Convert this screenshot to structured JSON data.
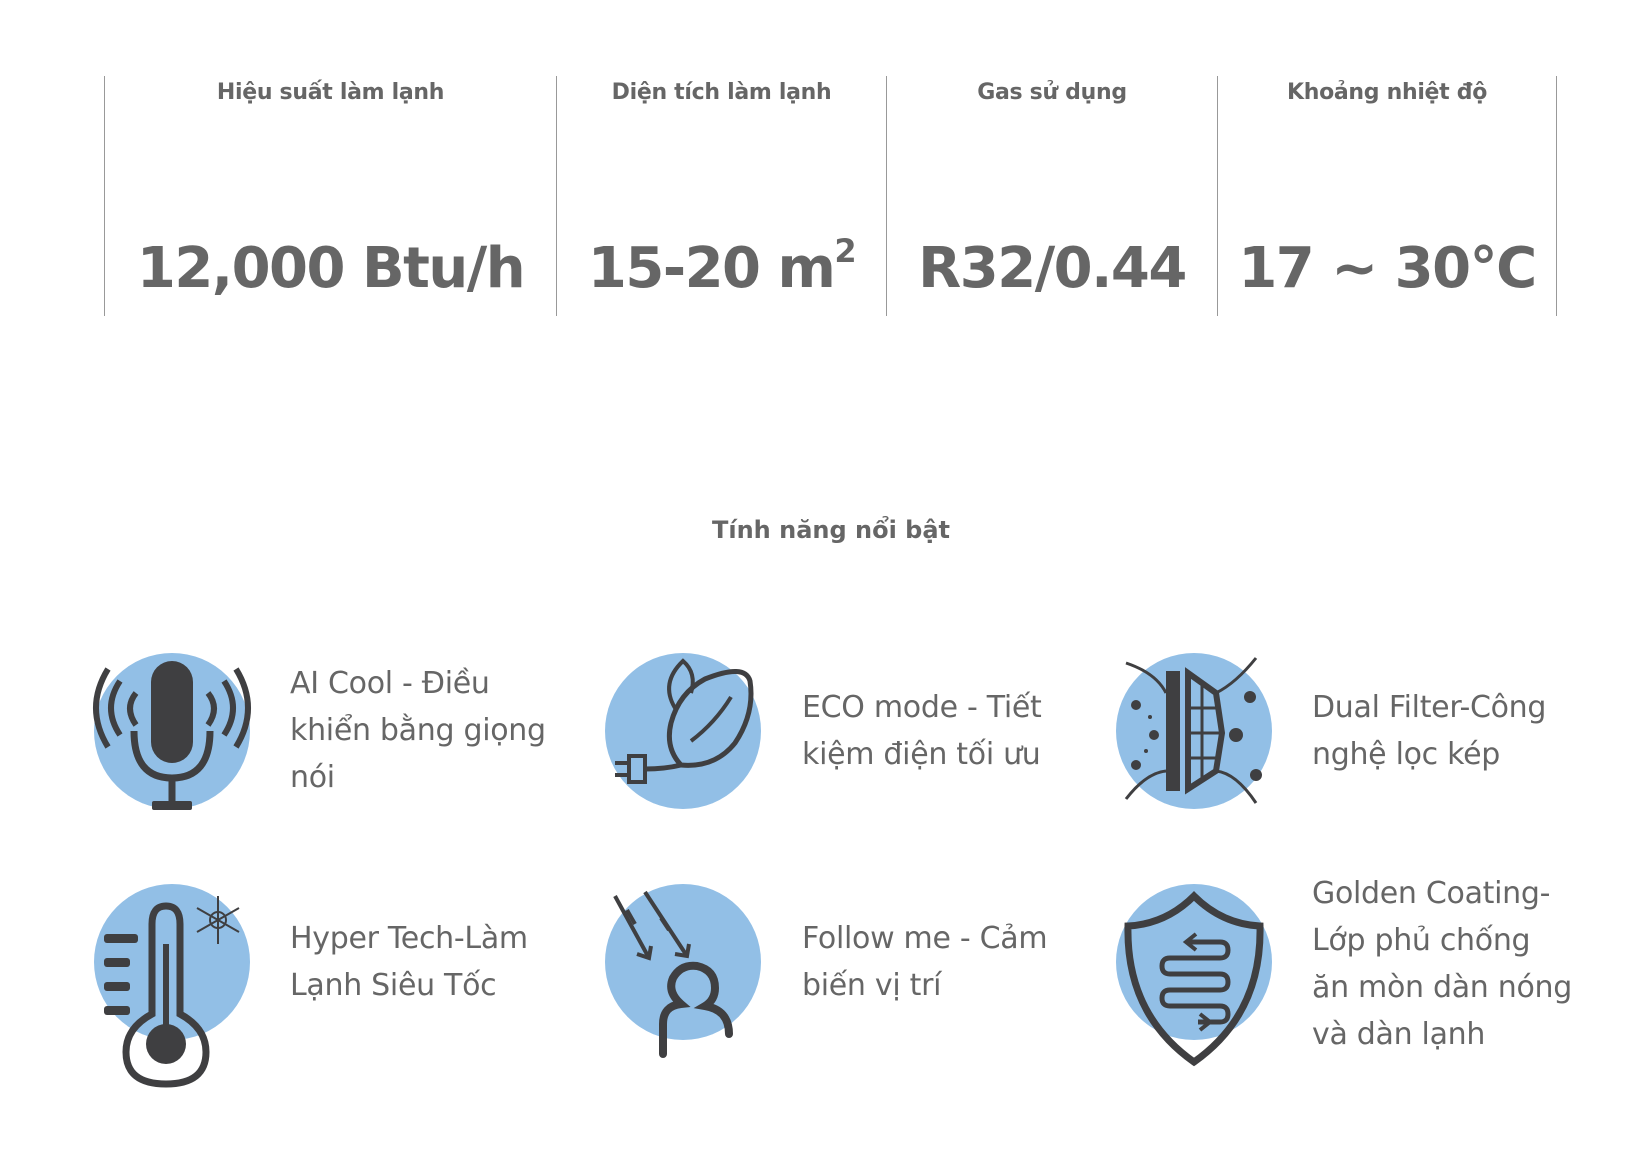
{
  "specs": [
    {
      "label": "Hiệu suất làm lạnh",
      "value": "12,000 Btu/h"
    },
    {
      "label": "Diện tích làm lạnh",
      "value": "15-20 m",
      "superscript": "2"
    },
    {
      "label": "Gas sử dụng",
      "value": "R32/0.44"
    },
    {
      "label": "Khoảng nhiệt độ",
      "value": "17 ~ 30°C"
    }
  ],
  "section_title": "Tính năng nổi bật",
  "features": [
    {
      "icon": "microphone-icon",
      "text": "AI Cool - Điều khiển bằng giọng nói"
    },
    {
      "icon": "leaf-plug-icon",
      "text": "ECO mode - Tiết kiệm điện tối ưu"
    },
    {
      "icon": "dual-filter-icon",
      "text": "Dual Filter-Công nghệ lọc kép"
    },
    {
      "icon": "thermometer-snowflake-icon",
      "text": "Hyper Tech-Làm Lạnh Siêu Tốc"
    },
    {
      "icon": "person-follow-icon",
      "text": "Follow me - Cảm biến vị trí"
    },
    {
      "icon": "shield-coil-icon",
      "text": "Golden Coating-Lớp phủ chống ăn mòn dàn nóng và dàn lạnh"
    }
  ],
  "colors": {
    "icon_circle": "#92bfe6",
    "icon_stroke": "#3f3f41",
    "text": "#666666",
    "divider": "#999999"
  }
}
